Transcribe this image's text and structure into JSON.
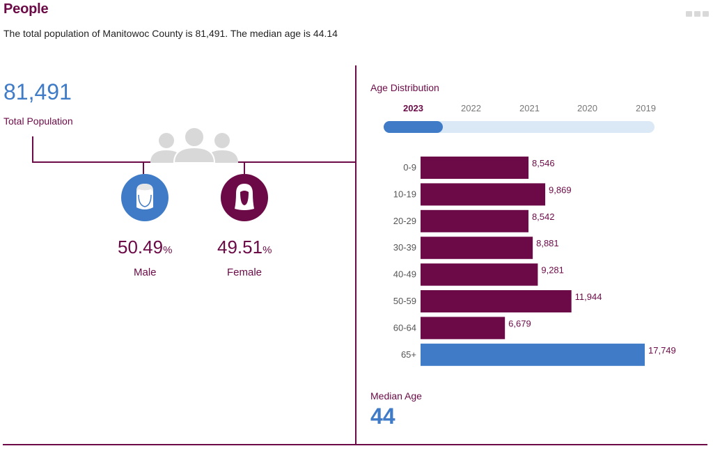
{
  "header": {
    "title": "People",
    "summary": "The total population of Manitowoc County is 81,491. The median age is 44.14",
    "menu_icon": "more-dots-icon"
  },
  "population": {
    "value": "81,491",
    "label": "Total Population",
    "group_icon": "people-group-icon"
  },
  "gender": {
    "male": {
      "pct": "50.49",
      "sign": "%",
      "label": "Male",
      "icon": "male-person-icon",
      "color": "#3f7bc6"
    },
    "female": {
      "pct": "49.51",
      "sign": "%",
      "label": "Female",
      "icon": "female-person-icon",
      "color": "#6b0a46"
    }
  },
  "age_distribution": {
    "title": "Age Distribution",
    "years": [
      "2023",
      "2022",
      "2021",
      "2020",
      "2019"
    ],
    "selected_year": "2023"
  },
  "median_age": {
    "label": "Median Age",
    "value": "44"
  },
  "colors": {
    "brand": "#6b0a46",
    "accent": "#3f7bc6",
    "slider_track": "#dbe9f6"
  },
  "chart_data": {
    "type": "bar",
    "orientation": "horizontal",
    "categories": [
      "0-9",
      "10-19",
      "20-29",
      "30-39",
      "40-49",
      "50-59",
      "60-64",
      "65+"
    ],
    "values": [
      8546,
      9869,
      8542,
      8881,
      9281,
      11944,
      6679,
      17749
    ],
    "value_labels": [
      "8,546",
      "9,869",
      "8,542",
      "8,881",
      "9,281",
      "11,944",
      "6,679",
      "17,749"
    ],
    "highlight_category": "65+",
    "colors": {
      "default": "#6b0a46",
      "highlight": "#3f7bc6"
    }
  }
}
